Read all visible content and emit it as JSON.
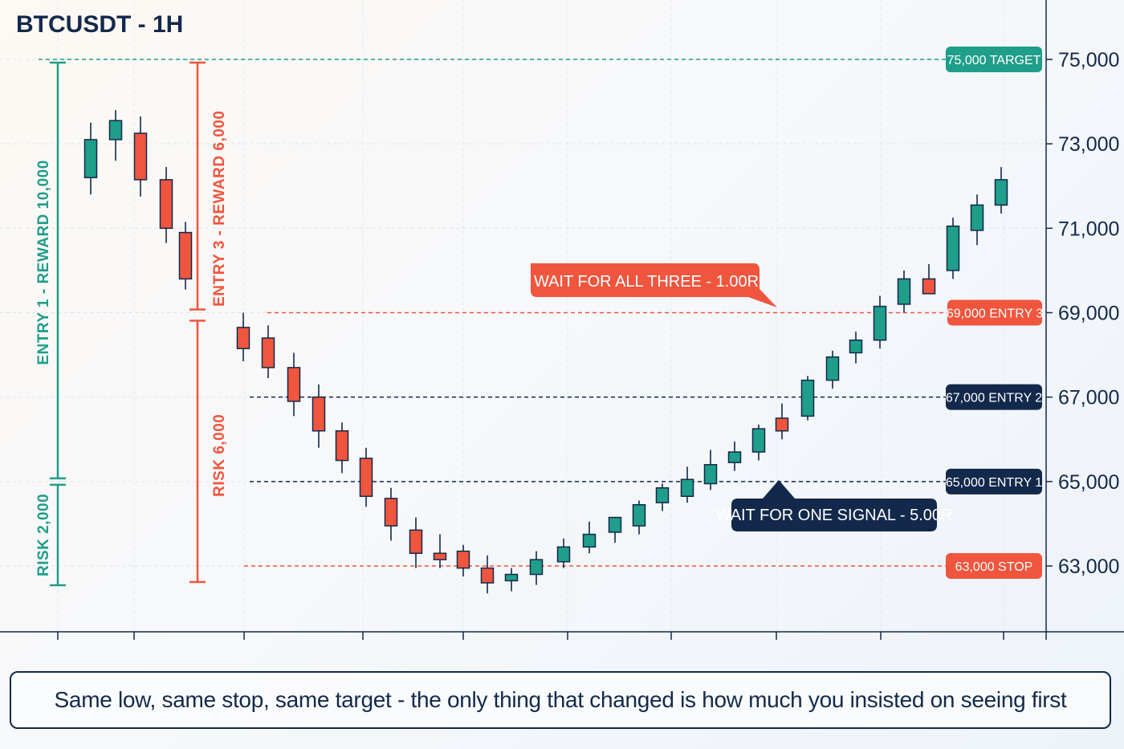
{
  "chart_data": {
    "type": "candlestick",
    "title": "BTCUSDT - 1H",
    "y_ticks": [
      "75,000",
      "73,000",
      "71,000",
      "69,000",
      "67,000",
      "65,000",
      "63,000"
    ],
    "y_tick_values": [
      75000,
      73000,
      71000,
      69000,
      67000,
      65000,
      63000
    ],
    "ylim": [
      61500,
      76200
    ],
    "grid": true,
    "colors": {
      "up": "#1f9e8a",
      "down": "#f0553e",
      "navy": "#13294b"
    },
    "candles": [
      {
        "o": 72200,
        "h": 73500,
        "l": 71800,
        "c": 73100
      },
      {
        "o": 73100,
        "h": 73800,
        "l": 72600,
        "c": 73550
      },
      {
        "o": 73250,
        "h": 73650,
        "l": 71750,
        "c": 72150
      },
      {
        "o": 72150,
        "h": 72450,
        "l": 70650,
        "c": 71000
      },
      {
        "o": 70900,
        "h": 71150,
        "l": 69550,
        "c": 69800
      },
      {
        "o": 68650,
        "h": 69000,
        "l": 67850,
        "c": 68150
      },
      {
        "o": 68400,
        "h": 68700,
        "l": 67450,
        "c": 67700
      },
      {
        "o": 67700,
        "h": 68050,
        "l": 66550,
        "c": 66900
      },
      {
        "o": 67000,
        "h": 67300,
        "l": 65800,
        "c": 66200
      },
      {
        "o": 66200,
        "h": 66400,
        "l": 65200,
        "c": 65500
      },
      {
        "o": 65550,
        "h": 65800,
        "l": 64400,
        "c": 64650
      },
      {
        "o": 64600,
        "h": 64850,
        "l": 63600,
        "c": 63950
      },
      {
        "o": 63850,
        "h": 64150,
        "l": 62950,
        "c": 63300
      },
      {
        "o": 63300,
        "h": 63750,
        "l": 62950,
        "c": 63150
      },
      {
        "o": 63350,
        "h": 63500,
        "l": 62750,
        "c": 62950
      },
      {
        "o": 62950,
        "h": 63250,
        "l": 62350,
        "c": 62600
      },
      {
        "o": 62650,
        "h": 62950,
        "l": 62400,
        "c": 62800
      },
      {
        "o": 62800,
        "h": 63350,
        "l": 62550,
        "c": 63150
      },
      {
        "o": 63100,
        "h": 63650,
        "l": 62950,
        "c": 63450
      },
      {
        "o": 63450,
        "h": 64050,
        "l": 63300,
        "c": 63750
      },
      {
        "o": 63800,
        "h": 64150,
        "l": 63550,
        "c": 64150
      },
      {
        "o": 63950,
        "h": 64550,
        "l": 63750,
        "c": 64450
      },
      {
        "o": 64500,
        "h": 64950,
        "l": 64300,
        "c": 64850
      },
      {
        "o": 64650,
        "h": 65350,
        "l": 64500,
        "c": 65050
      },
      {
        "o": 64950,
        "h": 65750,
        "l": 64800,
        "c": 65400
      },
      {
        "o": 65450,
        "h": 65950,
        "l": 65250,
        "c": 65700
      },
      {
        "o": 65700,
        "h": 66350,
        "l": 65500,
        "c": 66250
      },
      {
        "o": 66500,
        "h": 66850,
        "l": 66000,
        "c": 66200
      },
      {
        "o": 66550,
        "h": 67500,
        "l": 66450,
        "c": 67400
      },
      {
        "o": 67400,
        "h": 68100,
        "l": 67200,
        "c": 67950
      },
      {
        "o": 68050,
        "h": 68550,
        "l": 67800,
        "c": 68350
      },
      {
        "o": 68350,
        "h": 69400,
        "l": 68150,
        "c": 69150
      },
      {
        "o": 69200,
        "h": 70000,
        "l": 69000,
        "c": 69800
      },
      {
        "o": 69800,
        "h": 70150,
        "l": 69450,
        "c": 69450
      },
      {
        "o": 70000,
        "h": 71250,
        "l": 69800,
        "c": 71050
      },
      {
        "o": 70950,
        "h": 71800,
        "l": 70600,
        "c": 71550
      },
      {
        "o": 71550,
        "h": 72450,
        "l": 71350,
        "c": 72150
      }
    ],
    "levels": [
      {
        "price": 75000,
        "tag": "75,000 TARGET",
        "style": "target"
      },
      {
        "price": 69000,
        "tag": "69,000 ENTRY 3",
        "style": "entry3"
      },
      {
        "price": 67000,
        "tag": "67,000 ENTRY 2",
        "style": "entry2"
      },
      {
        "price": 65000,
        "tag": "65,000 ENTRY 1",
        "style": "entry1"
      },
      {
        "price": 63000,
        "tag": "63,000 STOP",
        "style": "stop"
      }
    ],
    "annotations": {
      "wait_all": "WAIT FOR ALL THREE - 1.00R",
      "wait_one": "WAIT FOR ONE SIGNAL - 5.00R",
      "entry1_reward": "ENTRY 1 - REWARD 10,000",
      "entry1_risk": "RISK 2,000",
      "entry3_reward": "ENTRY 3 - REWARD 6,000",
      "entry3_risk": "RISK 6,000"
    }
  },
  "caption": "Same low, same stop, same target - the only thing that changed is how much you insisted on seeing first"
}
